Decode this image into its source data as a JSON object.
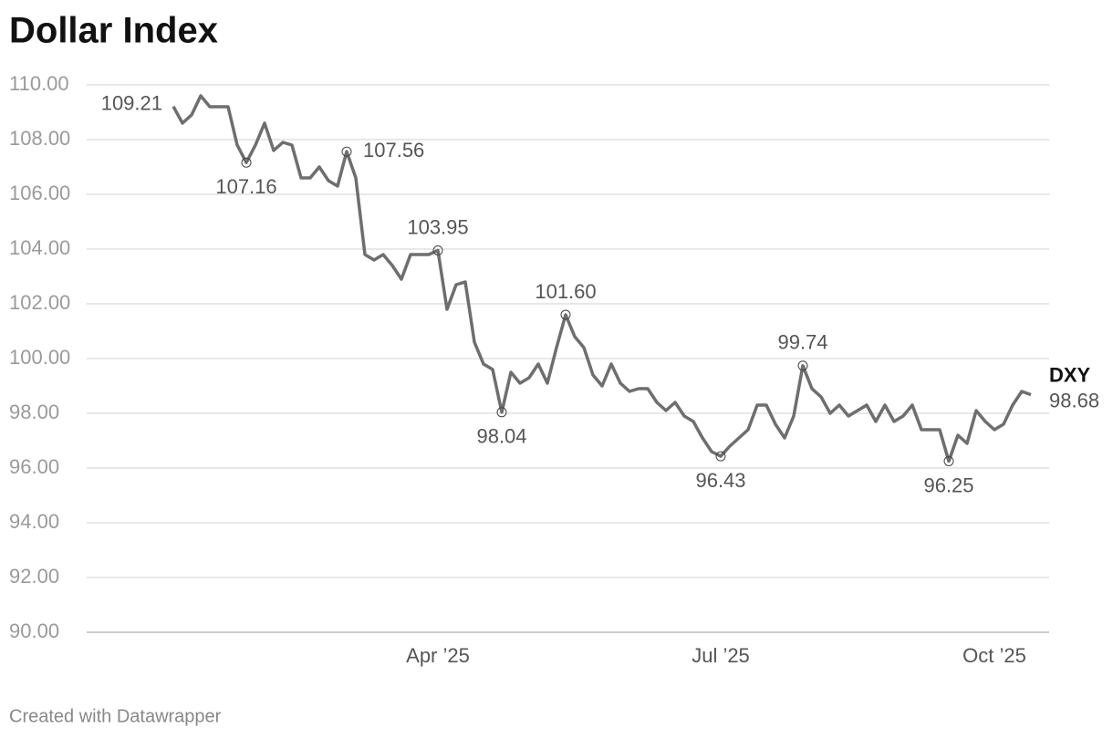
{
  "chart_data": {
    "type": "line",
    "title": "Dollar Index",
    "categories": [
      null,
      null,
      null,
      null,
      null,
      null,
      null,
      null,
      null,
      null,
      null,
      null,
      null,
      null,
      null,
      null,
      null,
      null,
      null,
      null,
      null,
      null,
      null,
      null,
      null,
      null,
      null,
      null,
      null,
      "Apr ’25",
      null,
      null,
      null,
      null,
      null,
      null,
      null,
      null,
      null,
      null,
      null,
      null,
      null,
      null,
      null,
      null,
      null,
      null,
      null,
      null,
      null,
      null,
      null,
      null,
      null,
      null,
      null,
      null,
      null,
      null,
      "Jul ’25",
      null,
      null,
      null,
      null,
      null,
      null,
      null,
      null,
      null,
      null,
      null,
      null,
      null,
      null,
      null,
      null,
      null,
      null,
      null,
      null,
      null,
      null,
      null,
      null,
      null,
      null,
      null,
      null,
      null,
      "Oct ’25",
      null,
      null,
      null,
      null
    ],
    "series": [
      {
        "name": "DXY",
        "color": "#6e6e6e",
        "values": [
          109.21,
          108.6,
          108.9,
          109.6,
          109.2,
          109.2,
          109.2,
          107.8,
          107.16,
          107.8,
          108.6,
          107.6,
          107.9,
          107.8,
          106.6,
          106.6,
          107.0,
          106.5,
          106.3,
          107.56,
          106.6,
          103.8,
          103.6,
          103.8,
          103.4,
          102.9,
          103.8,
          103.8,
          103.8,
          103.95,
          101.8,
          102.7,
          102.8,
          100.6,
          99.8,
          99.6,
          98.04,
          99.5,
          99.1,
          99.3,
          99.8,
          99.1,
          100.4,
          101.6,
          100.8,
          100.4,
          99.4,
          99.0,
          99.8,
          99.1,
          98.8,
          98.9,
          98.9,
          98.4,
          98.1,
          98.4,
          97.9,
          97.7,
          97.1,
          96.6,
          96.43,
          96.8,
          97.1,
          97.4,
          98.3,
          98.3,
          97.6,
          97.1,
          97.9,
          99.74,
          98.9,
          98.6,
          98.0,
          98.3,
          97.9,
          98.1,
          98.3,
          97.7,
          98.3,
          97.7,
          97.9,
          98.3,
          97.4,
          97.4,
          97.4,
          96.25,
          97.2,
          96.9,
          98.1,
          97.7,
          97.4,
          97.6,
          98.3,
          98.8,
          98.68
        ],
        "value_labels": [
          "109.21",
          null,
          null,
          null,
          null,
          null,
          null,
          null,
          "107.16",
          null,
          null,
          null,
          null,
          null,
          null,
          null,
          null,
          null,
          null,
          "107.56",
          null,
          null,
          null,
          null,
          null,
          null,
          null,
          null,
          null,
          "103.95",
          null,
          null,
          null,
          null,
          null,
          null,
          "98.04",
          null,
          null,
          null,
          null,
          null,
          null,
          "101.60",
          null,
          null,
          null,
          null,
          null,
          null,
          null,
          null,
          null,
          null,
          null,
          null,
          null,
          null,
          null,
          null,
          "96.43",
          null,
          null,
          null,
          null,
          null,
          null,
          null,
          null,
          "99.74",
          null,
          null,
          null,
          null,
          null,
          null,
          null,
          null,
          null,
          null,
          null,
          null,
          null,
          null,
          null,
          "96.25",
          null,
          null,
          null,
          null,
          null,
          null,
          null,
          null,
          "98.68"
        ]
      }
    ],
    "ylim": [
      90,
      110
    ],
    "yticks": [
      {
        "value": 90,
        "label": "90.00"
      },
      {
        "value": 92,
        "label": "92.00"
      },
      {
        "value": 94,
        "label": "94.00"
      },
      {
        "value": 96,
        "label": "96.00"
      },
      {
        "value": 98,
        "label": "98.00"
      },
      {
        "value": 100,
        "label": "100.00"
      },
      {
        "value": 102,
        "label": "102.00"
      },
      {
        "value": 104,
        "label": "104.00"
      },
      {
        "value": 106,
        "label": "106.00"
      },
      {
        "value": 108,
        "label": "108.00"
      },
      {
        "value": 110,
        "label": "110.00"
      }
    ],
    "grid": true,
    "footer": "Created with Datawrapper"
  }
}
